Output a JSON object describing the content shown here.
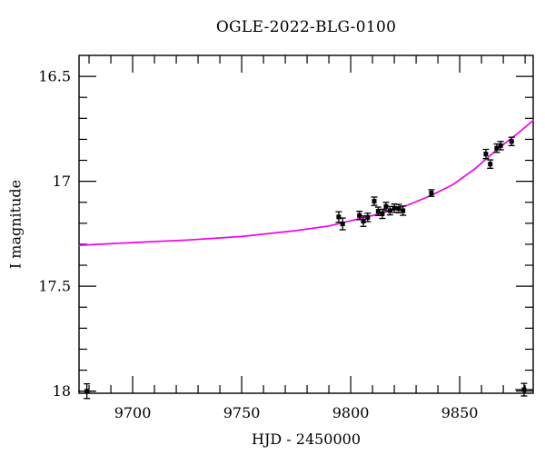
{
  "figure": {
    "background": "#ffffff",
    "axis_color": "#000000",
    "tick_label_color": "#000000"
  },
  "chart_data": {
    "type": "scatter",
    "title": "OGLE-2022-BLG-0100",
    "xlabel": "HJD - 2450000",
    "ylabel": "I magnitude",
    "xlim": [
      9675.4,
      9883.7
    ],
    "ylim": [
      16.4,
      18.01
    ],
    "y_inverted": true,
    "grid": false,
    "legend": "none",
    "model_color": "#f000f0",
    "point_color": "#000000",
    "x_major_ticks": [
      9700,
      9750,
      9800,
      9850
    ],
    "x_tick_labels": [
      "9700",
      "9750",
      "9800",
      "9850"
    ],
    "x_minor_step": 10,
    "y_major_ticks": [
      16.5,
      17,
      17.5,
      18
    ],
    "y_tick_labels": [
      "16.5",
      "17",
      "17.5",
      "18"
    ],
    "y_minor_step": 0.1,
    "series": [
      {
        "name": "I-band data points (HJD-2450000, I mag, mag error)",
        "marker": "square",
        "points": [
          [
            9794.5,
            17.17,
            0.025
          ],
          [
            9796.3,
            17.203,
            0.028
          ],
          [
            9804.0,
            17.163,
            0.02
          ],
          [
            9805.8,
            17.19,
            0.025
          ],
          [
            9807.8,
            17.172,
            0.02
          ],
          [
            9810.8,
            17.095,
            0.02
          ],
          [
            9812.6,
            17.143,
            0.02
          ],
          [
            9814.5,
            17.155,
            0.022
          ],
          [
            9816.2,
            17.12,
            0.02
          ],
          [
            9818.0,
            17.14,
            0.02
          ],
          [
            9820.0,
            17.128,
            0.02
          ],
          [
            9822.0,
            17.13,
            0.02
          ],
          [
            9824.0,
            17.14,
            0.022
          ],
          [
            9837.0,
            17.056,
            0.016
          ],
          [
            9862.0,
            16.87,
            0.022
          ],
          [
            9864.0,
            16.918,
            0.02
          ],
          [
            9867.0,
            16.842,
            0.02
          ],
          [
            9868.8,
            16.83,
            0.02
          ],
          [
            9873.8,
            16.81,
            0.02
          ]
        ]
      },
      {
        "name": "outlier points at plot bottom edge (HJD-2450000, I mag, mag error, day error)",
        "marker": "square",
        "points_xy_err": [
          [
            9679.0,
            18.0,
            0.035,
            4.0
          ],
          [
            9879.5,
            17.993,
            0.03,
            4.0
          ]
        ]
      },
      {
        "name": "microlensing model curve (HJD-2450000, I mag)",
        "style": "line",
        "points": [
          [
            9675.4,
            17.305
          ],
          [
            9700.0,
            17.292
          ],
          [
            9725.0,
            17.28
          ],
          [
            9750.0,
            17.263
          ],
          [
            9775.0,
            17.235
          ],
          [
            9790.0,
            17.213
          ],
          [
            9800.0,
            17.188
          ],
          [
            9814.0,
            17.153
          ],
          [
            9826.0,
            17.114
          ],
          [
            9837.0,
            17.067
          ],
          [
            9847.0,
            17.015
          ],
          [
            9857.0,
            16.94
          ],
          [
            9868.0,
            16.841
          ],
          [
            9876.0,
            16.777
          ],
          [
            9883.7,
            16.71
          ]
        ]
      }
    ]
  }
}
